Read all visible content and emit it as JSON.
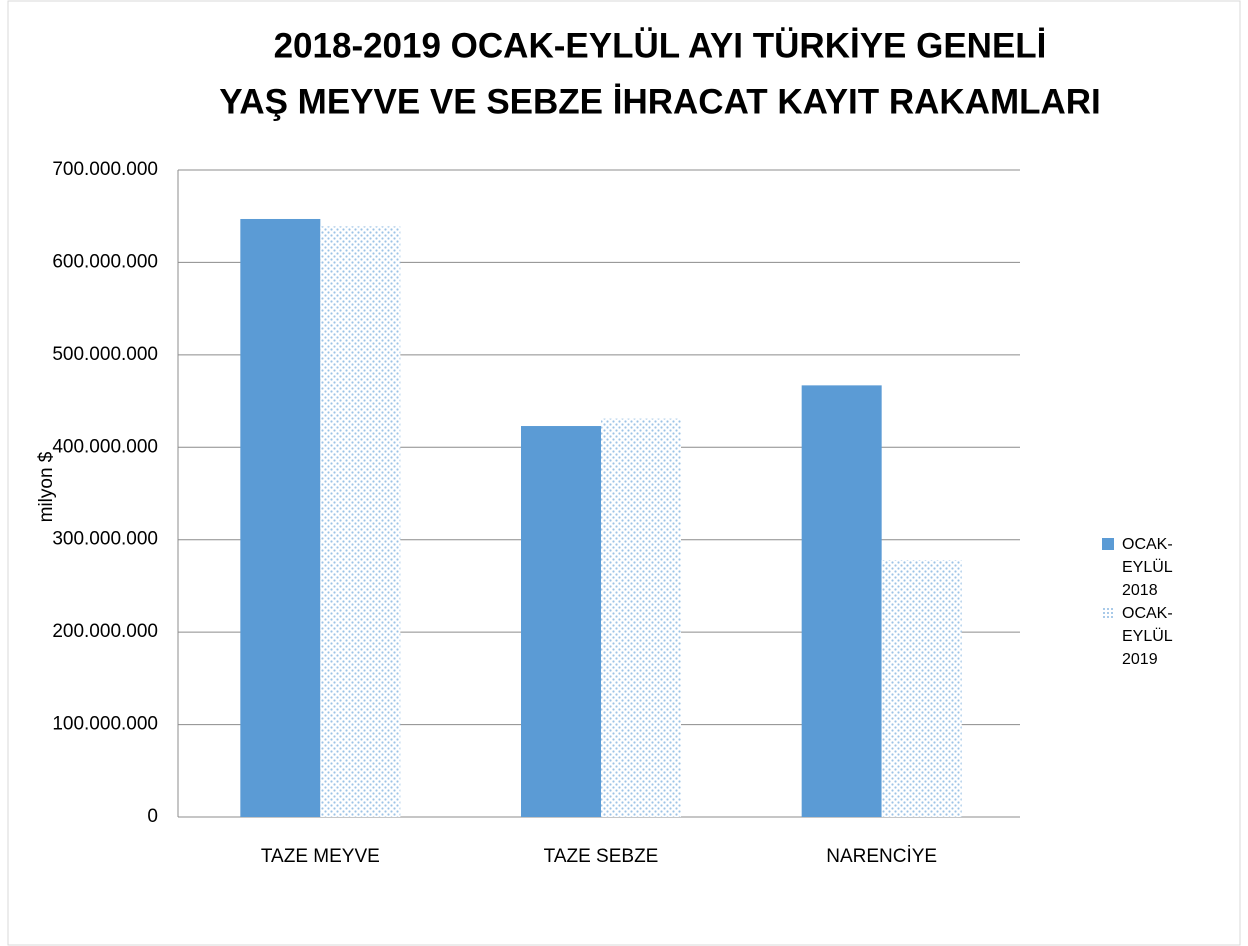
{
  "chart_data": {
    "type": "bar",
    "title": [
      "2018-2019 OCAK-EYLÜL AYI TÜRKİYE GENELİ",
      "YAŞ MEYVE VE SEBZE İHRACAT KAYIT RAKAMLARI"
    ],
    "y_label": "milyon $",
    "categories": [
      "TAZE MEYVE",
      "TAZE SEBZE",
      "NARENCİYE"
    ],
    "series": [
      {
        "name": "OCAK-EYLÜL 2018",
        "color": "#5b9bd5",
        "values": [
          647000000,
          423000000,
          467000000
        ]
      },
      {
        "name": "OCAK-EYLÜL 2019",
        "color": "#9dc3e6",
        "pattern": "dotted",
        "values": [
          639000000,
          431000000,
          278000000
        ]
      }
    ],
    "ylim": [
      0,
      700000000
    ],
    "yticks": [
      0,
      {
        "value": 100000000,
        "label": "100.000.000"
      },
      {
        "value": 200000000,
        "label": "200.000.000"
      },
      {
        "value": 300000000,
        "label": "300.000.000"
      },
      {
        "value": 400000000,
        "label": "400.000.000"
      },
      {
        "value": 500000000,
        "label": "500.000.000"
      },
      {
        "value": 600000000,
        "label": "600.000.000"
      },
      {
        "value": 700000000,
        "label": "700.000.000"
      }
    ],
    "grid": true,
    "legend": "right"
  }
}
